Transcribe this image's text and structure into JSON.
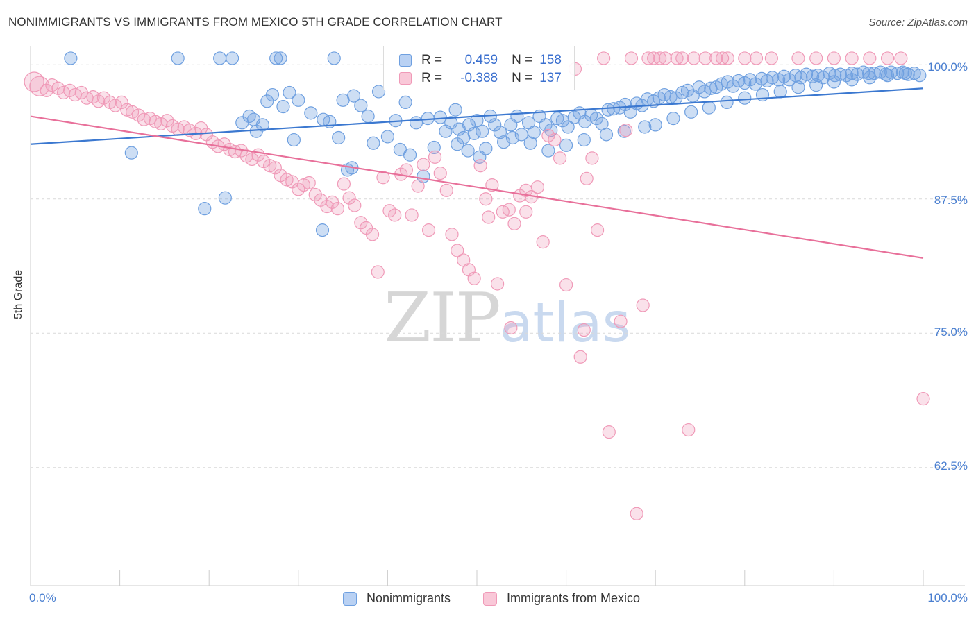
{
  "title": "NONIMMIGRANTS VS IMMIGRANTS FROM MEXICO 5TH GRADE CORRELATION CHART",
  "source": "Source: ZipAtlas.com",
  "watermark": {
    "zip": "ZIP",
    "atlas": "atlas"
  },
  "legend": {
    "r_label": "R =",
    "n_label": "N =",
    "series": [
      {
        "name": "Nonimmigrants",
        "r": "0.459",
        "n": "158",
        "color": "#6fa0e0"
      },
      {
        "name": "Immigrants from Mexico",
        "r": "-0.388",
        "n": "137",
        "color": "#f09ab8"
      }
    ]
  },
  "chart_data": {
    "type": "scatter",
    "title": "NONIMMIGRANTS VS IMMIGRANTS FROM MEXICO 5TH GRADE CORRELATION CHART",
    "xlabel": "",
    "ylabel": "5th Grade",
    "xlim": [
      0,
      100
    ],
    "ylim": [
      51.5,
      101.5
    ],
    "x_tick_labels": [
      "0.0%",
      "100.0%"
    ],
    "y_ticks": [
      {
        "value": 100,
        "label": "100.0%"
      },
      {
        "value": 87.5,
        "label": "87.5%"
      },
      {
        "value": 75,
        "label": "75.0%"
      },
      {
        "value": 62.5,
        "label": "62.5%"
      }
    ],
    "grid": true,
    "series": [
      {
        "name": "Nonimmigrants",
        "color": "#6fa0e0",
        "trend": {
          "x": [
            0,
            100
          ],
          "y": [
            92.6,
            97.8
          ]
        },
        "points": [
          [
            4.5,
            100.6
          ],
          [
            16.5,
            100.6
          ],
          [
            21.2,
            100.6
          ],
          [
            22.6,
            100.6
          ],
          [
            27.5,
            100.6
          ],
          [
            28.0,
            100.6
          ],
          [
            34.0,
            100.6
          ],
          [
            11.3,
            91.8
          ],
          [
            19.5,
            86.6
          ],
          [
            21.8,
            87.6
          ],
          [
            32.7,
            84.6
          ],
          [
            29.5,
            93.0
          ],
          [
            35.5,
            90.2
          ],
          [
            36.0,
            90.4
          ],
          [
            23.7,
            94.6
          ],
          [
            24.5,
            95.2
          ],
          [
            25.0,
            94.9
          ],
          [
            25.3,
            93.8
          ],
          [
            26.0,
            94.4
          ],
          [
            26.5,
            96.6
          ],
          [
            27.1,
            97.2
          ],
          [
            28.3,
            96.1
          ],
          [
            29.0,
            97.4
          ],
          [
            30.0,
            96.7
          ],
          [
            31.4,
            95.5
          ],
          [
            32.8,
            94.9
          ],
          [
            33.5,
            94.7
          ],
          [
            34.5,
            93.2
          ],
          [
            35.0,
            96.7
          ],
          [
            36.2,
            97.1
          ],
          [
            37.0,
            96.2
          ],
          [
            37.8,
            95.2
          ],
          [
            38.4,
            92.7
          ],
          [
            39.0,
            97.5
          ],
          [
            40.0,
            93.3
          ],
          [
            40.9,
            94.8
          ],
          [
            41.4,
            92.1
          ],
          [
            42.0,
            96.5
          ],
          [
            42.5,
            91.6
          ],
          [
            43.2,
            94.6
          ],
          [
            44.0,
            89.6
          ],
          [
            44.5,
            95.0
          ],
          [
            45.2,
            92.3
          ],
          [
            45.9,
            95.1
          ],
          [
            46.5,
            93.8
          ],
          [
            47.1,
            94.6
          ],
          [
            47.6,
            95.8
          ],
          [
            48.0,
            94.0
          ],
          [
            48.5,
            93.2
          ],
          [
            49.1,
            94.4
          ],
          [
            49.7,
            93.6
          ],
          [
            50.0,
            94.8
          ],
          [
            50.6,
            93.8
          ],
          [
            51.0,
            92.2
          ],
          [
            51.5,
            95.2
          ],
          [
            52.0,
            94.4
          ],
          [
            52.6,
            93.7
          ],
          [
            53.0,
            92.8
          ],
          [
            53.8,
            94.4
          ],
          [
            54.5,
            95.2
          ],
          [
            55.0,
            93.5
          ],
          [
            55.8,
            94.6
          ],
          [
            56.4,
            93.7
          ],
          [
            57.0,
            95.2
          ],
          [
            57.7,
            94.4
          ],
          [
            58.3,
            93.9
          ],
          [
            59.0,
            95.0
          ],
          [
            59.6,
            94.8
          ],
          [
            60.2,
            94.2
          ],
          [
            60.9,
            95.1
          ],
          [
            61.5,
            95.5
          ],
          [
            62.1,
            94.7
          ],
          [
            62.8,
            95.3
          ],
          [
            63.4,
            95.0
          ],
          [
            64.0,
            94.5
          ],
          [
            64.7,
            95.8
          ],
          [
            65.3,
            95.9
          ],
          [
            66.0,
            96.0
          ],
          [
            66.6,
            96.3
          ],
          [
            67.2,
            95.6
          ],
          [
            67.9,
            96.4
          ],
          [
            68.5,
            96.2
          ],
          [
            69.1,
            96.8
          ],
          [
            69.8,
            96.6
          ],
          [
            70.4,
            96.9
          ],
          [
            71.0,
            97.2
          ],
          [
            71.7,
            97.0
          ],
          [
            72.3,
            96.9
          ],
          [
            73.0,
            97.4
          ],
          [
            73.6,
            97.6
          ],
          [
            74.2,
            97.1
          ],
          [
            74.9,
            97.9
          ],
          [
            75.5,
            97.5
          ],
          [
            76.2,
            97.8
          ],
          [
            76.8,
            97.9
          ],
          [
            77.4,
            98.2
          ],
          [
            78.1,
            98.4
          ],
          [
            78.7,
            98.0
          ],
          [
            79.3,
            98.5
          ],
          [
            80.0,
            98.3
          ],
          [
            80.6,
            98.6
          ],
          [
            81.2,
            98.2
          ],
          [
            81.9,
            98.7
          ],
          [
            82.5,
            98.5
          ],
          [
            83.1,
            98.8
          ],
          [
            83.8,
            98.6
          ],
          [
            84.4,
            98.9
          ],
          [
            85.0,
            98.6
          ],
          [
            85.7,
            99.0
          ],
          [
            86.3,
            98.8
          ],
          [
            86.9,
            99.1
          ],
          [
            87.6,
            98.9
          ],
          [
            88.2,
            99.0
          ],
          [
            88.8,
            98.8
          ],
          [
            89.5,
            99.2
          ],
          [
            90.1,
            99.0
          ],
          [
            90.7,
            99.1
          ],
          [
            91.4,
            99.0
          ],
          [
            92.0,
            99.2
          ],
          [
            92.6,
            99.1
          ],
          [
            93.3,
            99.3
          ],
          [
            93.9,
            99.2
          ],
          [
            94.5,
            99.2
          ],
          [
            95.2,
            99.3
          ],
          [
            95.8,
            99.1
          ],
          [
            96.4,
            99.3
          ],
          [
            97.1,
            99.2
          ],
          [
            97.7,
            99.3
          ],
          [
            98.3,
            99.1
          ],
          [
            99.0,
            99.2
          ],
          [
            99.6,
            99.0
          ],
          [
            47.8,
            92.6
          ],
          [
            49.0,
            92.0
          ],
          [
            50.3,
            91.4
          ],
          [
            54.0,
            93.2
          ],
          [
            56.0,
            92.7
          ],
          [
            58.0,
            92.0
          ],
          [
            60.0,
            92.5
          ],
          [
            62.0,
            93.0
          ],
          [
            64.5,
            93.5
          ],
          [
            66.5,
            93.8
          ],
          [
            68.8,
            94.2
          ],
          [
            70.0,
            94.4
          ],
          [
            72.0,
            95.0
          ],
          [
            74.0,
            95.6
          ],
          [
            76.0,
            96.0
          ],
          [
            78.0,
            96.5
          ],
          [
            80.0,
            96.9
          ],
          [
            82.0,
            97.2
          ],
          [
            84.0,
            97.5
          ],
          [
            86.0,
            97.9
          ],
          [
            88.0,
            98.1
          ],
          [
            90.0,
            98.4
          ],
          [
            92.0,
            98.6
          ],
          [
            94.0,
            98.8
          ],
          [
            96.0,
            99.0
          ],
          [
            98.0,
            99.2
          ]
        ]
      },
      {
        "name": "Immigrants from Mexico",
        "color": "#f09ab8",
        "trend": {
          "x": [
            0,
            100
          ],
          "y": [
            95.2,
            82.0
          ]
        },
        "points": [
          [
            0.4,
            98.4
          ],
          [
            1.0,
            98.0
          ],
          [
            1.8,
            97.6
          ],
          [
            2.4,
            98.1
          ],
          [
            3.1,
            97.8
          ],
          [
            3.7,
            97.4
          ],
          [
            4.4,
            97.6
          ],
          [
            5.0,
            97.2
          ],
          [
            5.7,
            97.4
          ],
          [
            6.3,
            96.9
          ],
          [
            7.0,
            97.0
          ],
          [
            7.6,
            96.6
          ],
          [
            8.2,
            96.9
          ],
          [
            8.9,
            96.5
          ],
          [
            9.5,
            96.2
          ],
          [
            10.2,
            96.5
          ],
          [
            10.8,
            95.8
          ],
          [
            11.4,
            95.6
          ],
          [
            12.1,
            95.3
          ],
          [
            12.7,
            94.9
          ],
          [
            13.4,
            95.0
          ],
          [
            14.0,
            94.7
          ],
          [
            14.6,
            94.5
          ],
          [
            15.3,
            94.8
          ],
          [
            15.9,
            94.3
          ],
          [
            16.5,
            94.0
          ],
          [
            17.2,
            94.2
          ],
          [
            17.8,
            93.9
          ],
          [
            18.5,
            93.6
          ],
          [
            19.1,
            94.1
          ],
          [
            19.7,
            93.5
          ],
          [
            20.4,
            92.8
          ],
          [
            21.0,
            92.4
          ],
          [
            21.7,
            92.6
          ],
          [
            22.3,
            92.1
          ],
          [
            22.9,
            91.9
          ],
          [
            23.6,
            92.0
          ],
          [
            24.2,
            91.5
          ],
          [
            24.8,
            91.2
          ],
          [
            25.5,
            91.6
          ],
          [
            26.1,
            91.0
          ],
          [
            26.8,
            90.6
          ],
          [
            27.4,
            90.4
          ],
          [
            28.0,
            89.7
          ],
          [
            28.7,
            89.3
          ],
          [
            29.3,
            89.1
          ],
          [
            30.0,
            88.4
          ],
          [
            30.6,
            88.8
          ],
          [
            31.2,
            89.0
          ],
          [
            31.9,
            87.9
          ],
          [
            32.5,
            87.4
          ],
          [
            33.2,
            86.8
          ],
          [
            33.8,
            87.2
          ],
          [
            34.4,
            86.6
          ],
          [
            35.1,
            88.9
          ],
          [
            35.7,
            87.6
          ],
          [
            36.3,
            86.9
          ],
          [
            37.0,
            85.3
          ],
          [
            37.6,
            84.8
          ],
          [
            38.3,
            84.2
          ],
          [
            38.9,
            80.7
          ],
          [
            39.5,
            89.5
          ],
          [
            40.2,
            86.4
          ],
          [
            40.8,
            86.0
          ],
          [
            41.5,
            89.8
          ],
          [
            42.1,
            90.2
          ],
          [
            42.7,
            86.0
          ],
          [
            43.4,
            88.7
          ],
          [
            44.0,
            90.7
          ],
          [
            44.6,
            84.6
          ],
          [
            45.3,
            91.4
          ],
          [
            45.9,
            89.9
          ],
          [
            46.6,
            88.3
          ],
          [
            47.2,
            84.2
          ],
          [
            47.8,
            82.7
          ],
          [
            48.5,
            81.8
          ],
          [
            49.1,
            80.9
          ],
          [
            49.7,
            80.1
          ],
          [
            50.4,
            90.6
          ],
          [
            51.0,
            87.5
          ],
          [
            51.7,
            88.8
          ],
          [
            52.3,
            79.6
          ],
          [
            52.9,
            86.3
          ],
          [
            53.6,
            86.5
          ],
          [
            54.2,
            85.2
          ],
          [
            54.8,
            87.8
          ],
          [
            55.5,
            86.3
          ],
          [
            56.1,
            87.7
          ],
          [
            56.8,
            88.6
          ],
          [
            57.4,
            83.5
          ],
          [
            58.0,
            93.4
          ],
          [
            58.7,
            93.0
          ],
          [
            59.3,
            91.3
          ],
          [
            60.0,
            79.5
          ],
          [
            61.0,
            99.6
          ],
          [
            61.6,
            72.8
          ],
          [
            62.3,
            89.4
          ],
          [
            62.9,
            91.3
          ],
          [
            63.5,
            84.6
          ],
          [
            64.2,
            100.6
          ],
          [
            64.8,
            65.8
          ],
          [
            66.1,
            76.1
          ],
          [
            66.7,
            93.9
          ],
          [
            67.3,
            100.6
          ],
          [
            67.9,
            58.2
          ],
          [
            68.6,
            77.6
          ],
          [
            69.2,
            100.6
          ],
          [
            69.8,
            100.6
          ],
          [
            70.5,
            100.6
          ],
          [
            71.1,
            100.6
          ],
          [
            72.4,
            100.6
          ],
          [
            73.0,
            100.6
          ],
          [
            73.7,
            66.0
          ],
          [
            74.3,
            100.6
          ],
          [
            75.6,
            100.6
          ],
          [
            76.8,
            100.6
          ],
          [
            77.5,
            100.6
          ],
          [
            78.1,
            100.6
          ],
          [
            80.0,
            100.6
          ],
          [
            81.3,
            100.6
          ],
          [
            83.0,
            100.6
          ],
          [
            86.0,
            100.6
          ],
          [
            88.0,
            100.6
          ],
          [
            90.0,
            100.6
          ],
          [
            92.0,
            100.6
          ],
          [
            94.0,
            100.6
          ],
          [
            96.0,
            100.6
          ],
          [
            97.5,
            100.6
          ],
          [
            100.0,
            68.9
          ],
          [
            53.8,
            75.5
          ],
          [
            62.0,
            75.3
          ],
          [
            55.5,
            88.3
          ],
          [
            51.3,
            85.8
          ]
        ]
      }
    ]
  }
}
